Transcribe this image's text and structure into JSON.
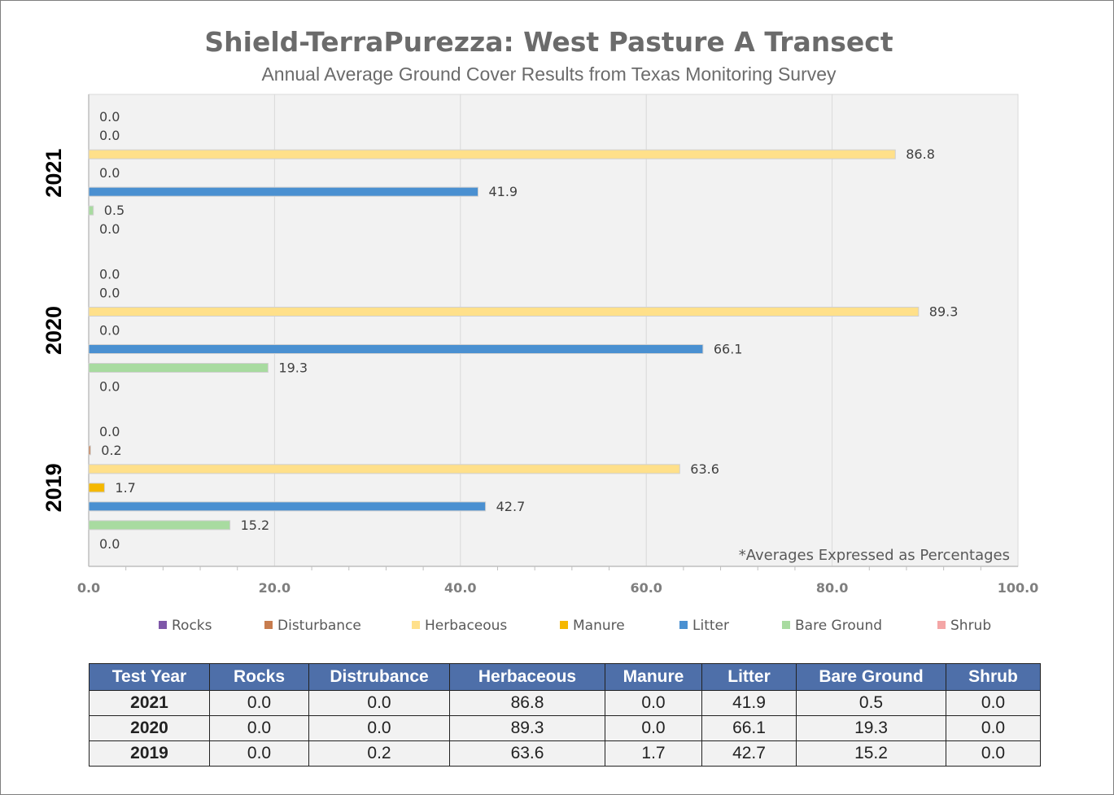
{
  "chart_data": {
    "type": "bar",
    "orientation": "horizontal",
    "title": "Shield-TerraPurezza: West Pasture A Transect",
    "subtitle": "Annual Average Ground Cover Results from Texas Monitoring Survey",
    "annotation": "*Averages Expressed as Percentages",
    "categories": [
      "2021",
      "2020",
      "2019"
    ],
    "xlim": [
      0,
      100
    ],
    "x_ticks": [
      "0.0",
      "20.0",
      "40.0",
      "60.0",
      "80.0",
      "100.0"
    ],
    "grid": true,
    "legend_position": "bottom",
    "series": [
      {
        "name": "Rocks",
        "color": "#7e57a8",
        "values": [
          0.0,
          0.0,
          0.0
        ]
      },
      {
        "name": "Disturbance",
        "color": "#c77c4e",
        "values": [
          0.0,
          0.0,
          0.2
        ]
      },
      {
        "name": "Herbaceous",
        "color": "#ffe08a",
        "values": [
          86.8,
          89.3,
          63.6
        ]
      },
      {
        "name": "Manure",
        "color": "#f5b800",
        "values": [
          0.0,
          0.0,
          1.7
        ]
      },
      {
        "name": "Litter",
        "color": "#4a90d1",
        "values": [
          41.9,
          66.1,
          42.7
        ]
      },
      {
        "name": "Bare Ground",
        "color": "#a8dba0",
        "values": [
          0.5,
          19.3,
          15.2
        ]
      },
      {
        "name": "Shrub",
        "color": "#f4a6a6",
        "values": [
          0.0,
          0.0,
          0.0
        ]
      }
    ]
  },
  "table": {
    "headers": [
      "Test Year",
      "Rocks",
      "Distrubance",
      "Herbaceous",
      "Manure",
      "Litter",
      "Bare Ground",
      "Shrub"
    ],
    "rows": [
      [
        "2021",
        "0.0",
        "0.0",
        "86.8",
        "0.0",
        "41.9",
        "0.5",
        "0.0"
      ],
      [
        "2020",
        "0.0",
        "0.0",
        "89.3",
        "0.0",
        "66.1",
        "19.3",
        "0.0"
      ],
      [
        "2019",
        "0.0",
        "0.2",
        "63.6",
        "1.7",
        "42.7",
        "15.2",
        "0.0"
      ]
    ]
  }
}
